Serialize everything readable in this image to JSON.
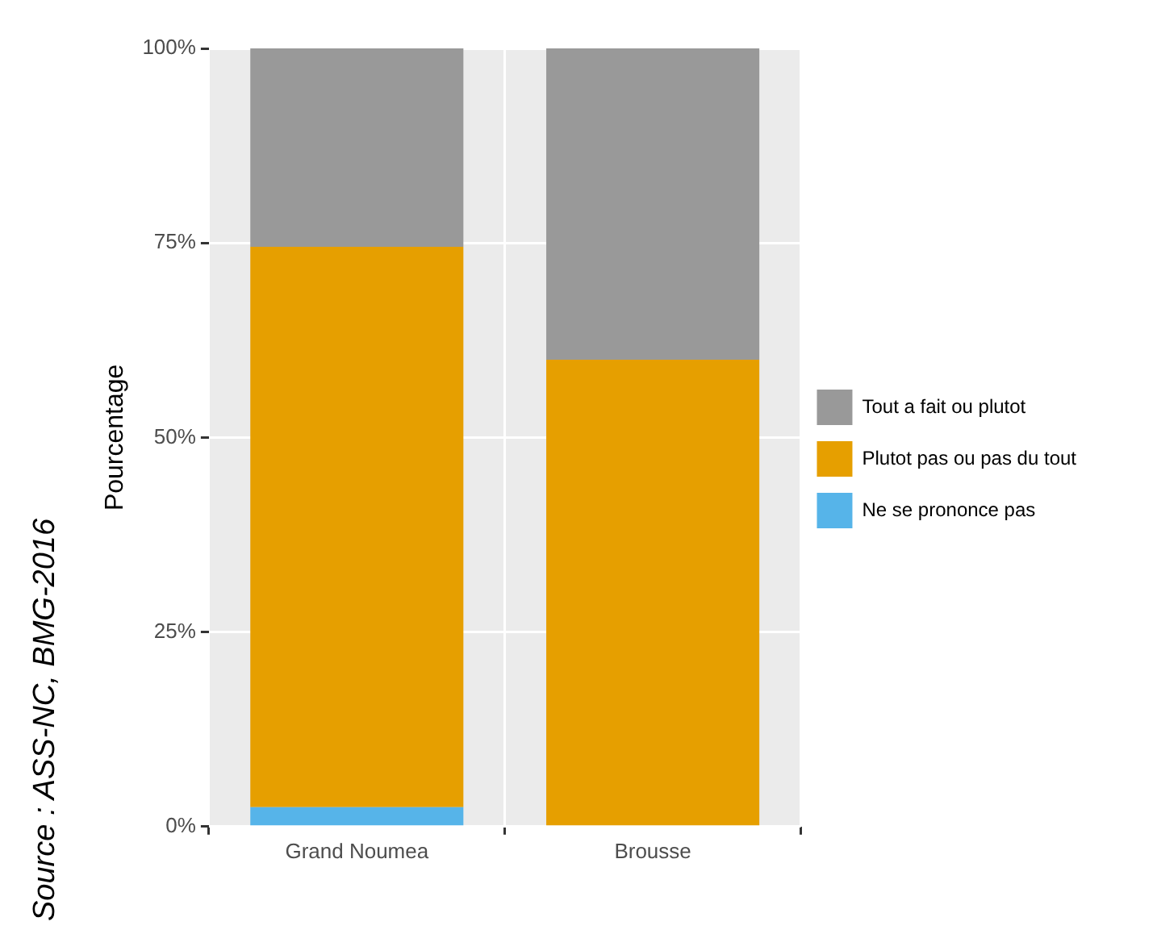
{
  "chart_data": {
    "type": "bar",
    "stacked": true,
    "ylabel": "Pourcentage",
    "categories": [
      "Grand Noumea",
      "Brousse"
    ],
    "series": [
      {
        "name": "Ne se prononce pas",
        "color": "#56b4e9",
        "values": [
          2.5,
          0
        ]
      },
      {
        "name": "Plutot pas ou pas du tout",
        "color": "#e69f00",
        "values": [
          72,
          60
        ]
      },
      {
        "name": "Tout a fait ou plutot",
        "color": "#999999",
        "values": [
          25.5,
          40
        ]
      }
    ],
    "ylim": [
      0,
      100
    ],
    "yticks": [
      {
        "value": 0,
        "label": "0%"
      },
      {
        "value": 25,
        "label": "25%"
      },
      {
        "value": 50,
        "label": "50%"
      },
      {
        "value": 75,
        "label": "75%"
      },
      {
        "value": 100,
        "label": "100%"
      }
    ],
    "grid": true,
    "legend": "right",
    "annotations": [
      "Source : ASS-NC, BMG-2016"
    ]
  }
}
